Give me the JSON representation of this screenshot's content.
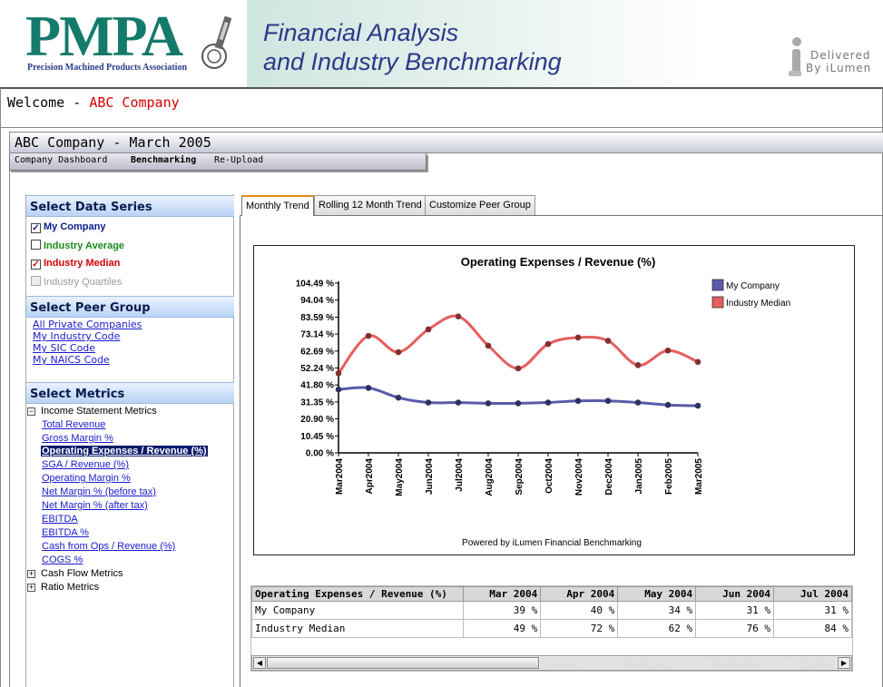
{
  "header": {
    "logo": "PMPA",
    "logo_subtitle": "Precision Machined Products Association",
    "title_line1": "Financial Analysis",
    "title_line2": "and Industry Benchmarking",
    "delivered_line1": "Delivered",
    "delivered_line2": "By iLumen"
  },
  "welcome": {
    "prefix": "Welcome - ",
    "company": "ABC Company"
  },
  "company_bar": {
    "title": "ABC Company - March 2005"
  },
  "subnav": [
    "Company Dashboard",
    "Benchmarking",
    "Re-Upload"
  ],
  "sidebar": {
    "series_heading": "Select Data Series",
    "series": [
      {
        "label": "My Company",
        "checked": true,
        "color": "#0b1b8a"
      },
      {
        "label": "Industry Average",
        "checked": false,
        "color": "#1a8a1a"
      },
      {
        "label": "Industry Median",
        "checked": true,
        "color": "#d40000"
      },
      {
        "label": "Industry Quartiles",
        "checked": false,
        "color": "#999999"
      }
    ],
    "peer_heading": "Select Peer Group",
    "peer_links": [
      "All Private Companies",
      "My Industry Code",
      "My SIC Code",
      "My NAICS Code"
    ],
    "metrics_heading": "Select Metrics",
    "income_group": "Income Statement Metrics",
    "metric_links": [
      "Total Revenue",
      "Gross Margin %",
      "Operating Expenses / Revenue (%)",
      "SGA / Revenue (%)",
      "Operating Margin %",
      "Net Margin % (before tax)",
      "Net Margin % (after tax)",
      "EBITDA",
      "EBITDA %",
      "Cash from Ops / Revenue (%)",
      "COGS %"
    ],
    "cash_group": "Cash Flow Metrics",
    "ratio_group": "Ratio Metrics"
  },
  "tabs": [
    "Monthly Trend",
    "Rolling 12 Month Trend",
    "Customize Peer Group"
  ],
  "chart_data": {
    "type": "line",
    "title": "Operating Expenses / Revenue (%)",
    "footer": "Powered by iLumen Financial Benchmarking",
    "categories": [
      "Mar2004",
      "Apr2004",
      "May2004",
      "Jun2004",
      "Jul2004",
      "Aug2004",
      "Sep2004",
      "Oct2004",
      "Nov2004",
      "Dec2004",
      "Jan2005",
      "Feb2005",
      "Mar2005"
    ],
    "y_ticks": [
      "104.49 %",
      "94.04 %",
      "83.59 %",
      "73.14 %",
      "62.69 %",
      "52.24 %",
      "41.80 %",
      "31.35 %",
      "20.90 %",
      "10.45 %",
      "0.00 %"
    ],
    "ylim": [
      0,
      104.49
    ],
    "series": [
      {
        "name": "My Company",
        "color": "#5a5aaa",
        "values": [
          39,
          40,
          34,
          31,
          31,
          30.5,
          30.5,
          31,
          32,
          32,
          31,
          29.5,
          29
        ]
      },
      {
        "name": "Industry Median",
        "color": "#e85d5d",
        "values": [
          49,
          72,
          62,
          76,
          84,
          66,
          52,
          67,
          71,
          69,
          54,
          63,
          56
        ]
      }
    ],
    "legend_position": "top-right"
  },
  "table": {
    "headers": [
      "Operating Expenses / Revenue (%)",
      "Mar 2004",
      "Apr 2004",
      "May 2004",
      "Jun 2004",
      "Jul 2004"
    ],
    "rows": [
      [
        "My Company",
        "39 %",
        "40 %",
        "34 %",
        "31 %",
        "31 %"
      ],
      [
        "Industry Median",
        "49 %",
        "72 %",
        "62 %",
        "76 %",
        "84 %"
      ]
    ]
  }
}
